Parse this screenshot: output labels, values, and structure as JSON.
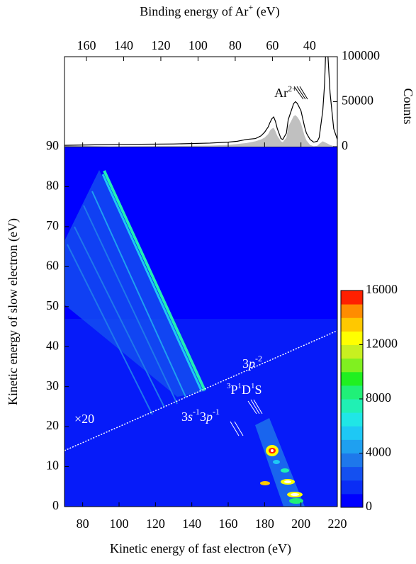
{
  "chart_data": [
    {
      "type": "line",
      "x": [
        70,
        100,
        130,
        150,
        160,
        165,
        170,
        175,
        178,
        180,
        182,
        183,
        184,
        185,
        186,
        187,
        189,
        190,
        192,
        193,
        195,
        196,
        197,
        198,
        199,
        200,
        202,
        203,
        205,
        207,
        209,
        210,
        212,
        213,
        214,
        216,
        218,
        220
      ],
      "series": [
        {
          "color": "#000000",
          "values": [
            1500,
            2500,
            3000,
            4000,
            5000,
            6000,
            8000,
            9000,
            12000,
            16000,
            22000,
            27000,
            31000,
            33000,
            28000,
            20000,
            9000,
            8000,
            15000,
            30000,
            42000,
            48000,
            50000,
            48000,
            44000,
            40000,
            22000,
            15000,
            8000,
            5000,
            6000,
            10000,
            40000,
            70000,
            130000,
            60000,
            20000,
            8000
          ]
        },
        {
          "color": "#c0c0c0",
          "fill": true,
          "values": [
            0,
            500,
            800,
            1200,
            2000,
            3000,
            4000,
            6000,
            8000,
            10000,
            14000,
            18000,
            20000,
            21000,
            17000,
            12000,
            6000,
            5000,
            10000,
            22000,
            30000,
            34000,
            35000,
            33000,
            30000,
            26000,
            12000,
            7000,
            2000,
            500,
            1000,
            3000,
            6000,
            5000,
            4000,
            2000,
            500,
            0
          ]
        }
      ],
      "xlim": [
        70,
        220
      ],
      "x2lim": [
        171.8,
        25.1
      ],
      "x2ticks": [
        160,
        140,
        120,
        100,
        80,
        60,
        40
      ],
      "x2label": [
        "Binding energy of Ar",
        "+",
        " (eV)"
      ],
      "ylim": [
        0,
        100000
      ],
      "yticks": [
        0,
        50000,
        100000
      ],
      "ylabel": "Counts",
      "annotation": [
        "Ar",
        "2+"
      ]
    },
    {
      "type": "heatmap",
      "xlim": [
        70,
        220
      ],
      "ylim": [
        0,
        90
      ],
      "xticks": [
        80,
        100,
        120,
        140,
        160,
        180,
        200,
        220
      ],
      "yticks": [
        0,
        10,
        20,
        30,
        40,
        50,
        60,
        70,
        80,
        90
      ],
      "xlabel": "Kinetic energy of fast electron (eV)",
      "ylabel": "Kinetic energy of slow electron (eV)",
      "boundary": {
        "x": [
          70,
          220
        ],
        "y": [
          14,
          44
        ]
      },
      "colorbar": {
        "lim": [
          0,
          16000
        ],
        "ticks": [
          0,
          4000,
          8000,
          12000,
          16000
        ],
        "colors": [
          "#0000ff",
          "#0a2df5",
          "#1450f0",
          "#1e78eb",
          "#1fa0f0",
          "#1ec8f5",
          "#20e6e6",
          "#20f0b4",
          "#20f078",
          "#20f020",
          "#80f020",
          "#c8f020",
          "#ffff00",
          "#ffc800",
          "#ff8c00",
          "#ff2000"
        ]
      },
      "annotations": {
        "scale": "×20",
        "dication": [
          "3",
          "p",
          "-2"
        ],
        "terms": [
          "3",
          "P",
          "1",
          "D",
          "1",
          "S"
        ],
        "satellite": [
          "3",
          "s",
          "-1",
          "3",
          "p",
          "-1"
        ]
      }
    }
  ]
}
